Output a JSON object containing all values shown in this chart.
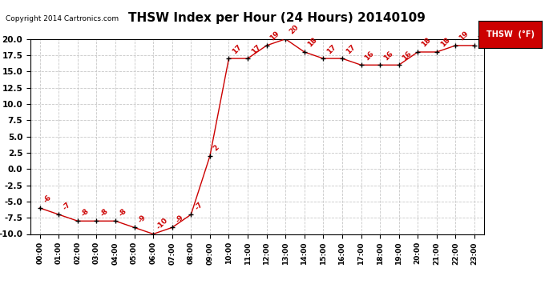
{
  "title": "THSW Index per Hour (24 Hours) 20140109",
  "copyright": "Copyright 2014 Cartronics.com",
  "legend_label": "THSW  (°F)",
  "hours": [
    "00:00",
    "01:00",
    "02:00",
    "03:00",
    "04:00",
    "05:00",
    "06:00",
    "07:00",
    "08:00",
    "09:00",
    "10:00",
    "11:00",
    "12:00",
    "13:00",
    "14:00",
    "15:00",
    "16:00",
    "17:00",
    "18:00",
    "19:00",
    "20:00",
    "21:00",
    "22:00",
    "23:00"
  ],
  "values": [
    -6,
    -7,
    -8,
    -8,
    -8,
    -9,
    -10,
    -9,
    -7,
    2,
    17,
    17,
    19,
    20,
    18,
    17,
    17,
    16,
    16,
    16,
    18,
    18,
    19,
    19
  ],
  "line_color": "#cc0000",
  "marker_color": "black",
  "background_color": "#ffffff",
  "grid_color": "#c8c8c8",
  "ylim": [
    -10.0,
    20.0
  ],
  "yticks": [
    -10.0,
    -7.5,
    -5.0,
    -2.5,
    0.0,
    2.5,
    5.0,
    7.5,
    10.0,
    12.5,
    15.0,
    17.5,
    20.0
  ],
  "ytick_labels": [
    "-10.0",
    "-7.5",
    "-5.0",
    "-2.5",
    "0.0",
    "2.5",
    "5.0",
    "7.5",
    "10.0",
    "12.5",
    "15.0",
    "17.5",
    "20.0"
  ],
  "title_fontsize": 11,
  "annotation_color": "#cc0000",
  "annotation_fontsize": 6.5,
  "legend_color": "#cc0000"
}
